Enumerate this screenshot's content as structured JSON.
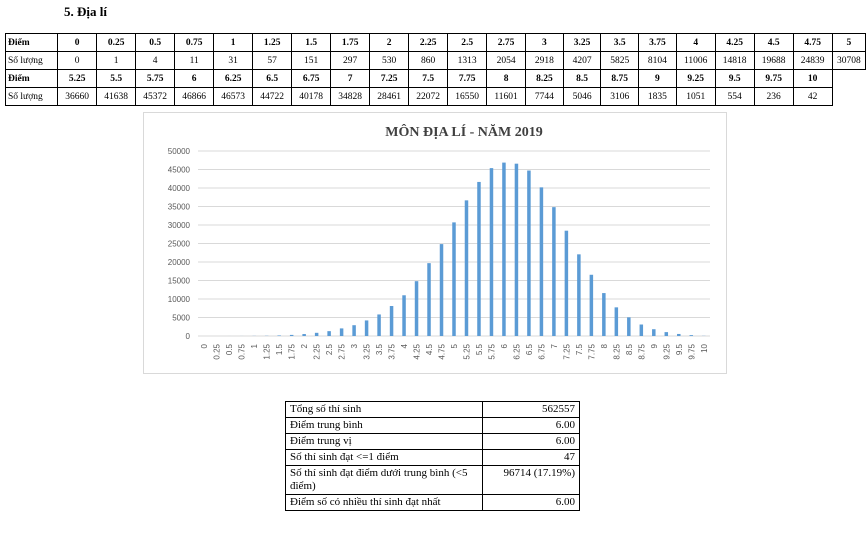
{
  "heading": "5.  Địa lí",
  "score_table": {
    "score_label": "Điểm",
    "count_label": "Số lượng",
    "row1_scores": [
      "0",
      "0.25",
      "0.5",
      "0.75",
      "1",
      "1.25",
      "1.5",
      "1.75",
      "2",
      "2.25",
      "2.5",
      "2.75",
      "3",
      "3.25",
      "3.5",
      "3.75",
      "4",
      "4.25",
      "4.5",
      "4.75",
      "5"
    ],
    "row1_counts": [
      "0",
      "1",
      "4",
      "11",
      "31",
      "57",
      "151",
      "297",
      "530",
      "860",
      "1313",
      "2054",
      "2918",
      "4207",
      "5825",
      "8104",
      "11006",
      "14818",
      "19688",
      "24839",
      "30708"
    ],
    "row2_scores": [
      "5.25",
      "5.5",
      "5.75",
      "6",
      "6.25",
      "6.5",
      "6.75",
      "7",
      "7.25",
      "7.5",
      "7.75",
      "8",
      "8.25",
      "8.5",
      "8.75",
      "9",
      "9.25",
      "9.5",
      "9.75",
      "10"
    ],
    "row2_counts": [
      "36660",
      "41638",
      "45372",
      "46866",
      "46573",
      "44722",
      "40178",
      "34828",
      "28461",
      "22072",
      "16550",
      "11601",
      "7744",
      "5046",
      "3106",
      "1835",
      "1051",
      "554",
      "236",
      "42"
    ]
  },
  "chart_data": {
    "type": "bar",
    "title": "MÔN ĐỊA LÍ - NĂM 2019",
    "xlabel": "",
    "ylabel": "",
    "ylim": [
      0,
      50000
    ],
    "yticks": [
      0,
      5000,
      10000,
      15000,
      20000,
      25000,
      30000,
      35000,
      40000,
      45000,
      50000
    ],
    "grid": true,
    "bar_color": "#5b9bd5",
    "categories": [
      "0",
      "0.25",
      "0.5",
      "0.75",
      "1",
      "1.25",
      "1.5",
      "1.75",
      "2",
      "2.25",
      "2.5",
      "2.75",
      "3",
      "3.25",
      "3.5",
      "3.75",
      "4",
      "4.25",
      "4.5",
      "4.75",
      "5",
      "5.25",
      "5.5",
      "5.75",
      "6",
      "6.25",
      "6.5",
      "6.75",
      "7",
      "7.25",
      "7.5",
      "7.75",
      "8",
      "8.25",
      "8.5",
      "8.75",
      "9",
      "9.25",
      "9.5",
      "9.75",
      "10"
    ],
    "values": [
      0,
      1,
      4,
      11,
      31,
      57,
      151,
      297,
      530,
      860,
      1313,
      2054,
      2918,
      4207,
      5825,
      8104,
      11006,
      14818,
      19688,
      24839,
      30708,
      36660,
      41638,
      45372,
      46866,
      46573,
      44722,
      40178,
      34828,
      28461,
      22072,
      16550,
      11601,
      7744,
      5046,
      3106,
      1835,
      1051,
      554,
      236,
      42
    ]
  },
  "stats": [
    {
      "label": "Tổng số thí sinh",
      "value": "562557"
    },
    {
      "label": "Điểm trung bình",
      "value": "6.00"
    },
    {
      "label": "Điểm trung vị",
      "value": "6.00"
    },
    {
      "label": "Số thí sinh đạt <=1 điểm",
      "value": "47"
    },
    {
      "label": "Số thí sinh đạt điểm dưới trung bình (<5 điểm)",
      "value": "96714 (17.19%)"
    },
    {
      "label": "Điểm số có nhiều thí sinh đạt nhất",
      "value": "6.00"
    }
  ]
}
